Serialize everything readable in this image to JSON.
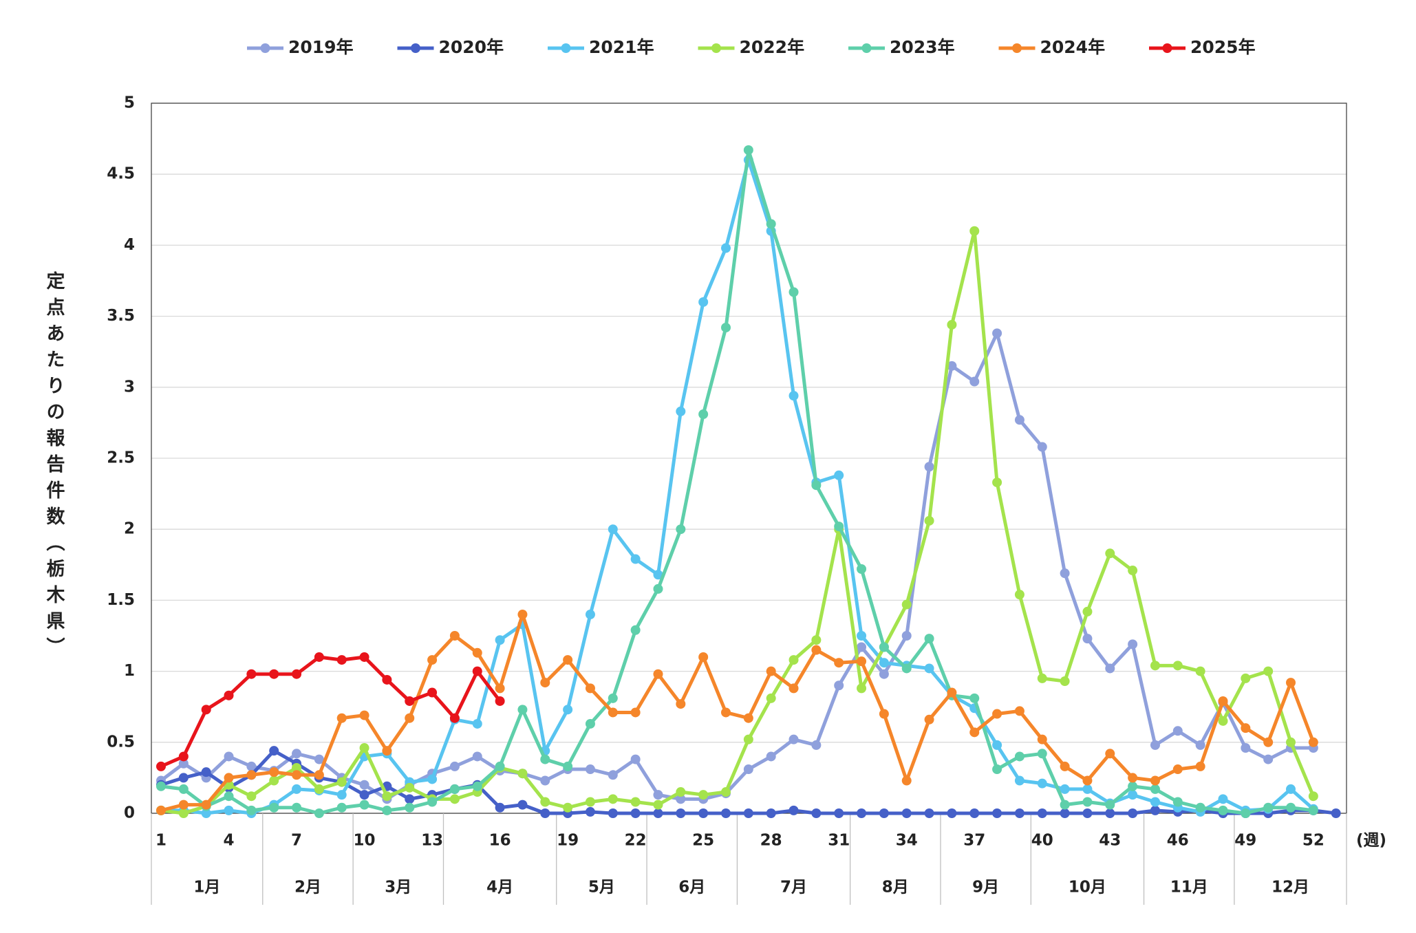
{
  "chart_data": {
    "type": "line",
    "y_label": "定点あたりの報告件数（栃木県）",
    "x_unit": "(週)",
    "categories": [
      "1",
      null,
      null,
      "4",
      null,
      null,
      "7",
      null,
      null,
      "10",
      null,
      null,
      "13",
      null,
      null,
      "16",
      null,
      null,
      "19",
      null,
      null,
      "22",
      null,
      null,
      "25",
      null,
      null,
      "28",
      null,
      null,
      "31",
      null,
      null,
      "34",
      null,
      null,
      "37",
      null,
      null,
      "40",
      null,
      null,
      "43",
      null,
      null,
      "46",
      null,
      null,
      "49",
      null,
      null,
      "52",
      null
    ],
    "month_groups": [
      {
        "label": "1月",
        "weeks": 5
      },
      {
        "label": "2月",
        "weeks": 4
      },
      {
        "label": "3月",
        "weeks": 4
      },
      {
        "label": "4月",
        "weeks": 5
      },
      {
        "label": "5月",
        "weeks": 4
      },
      {
        "label": "6月",
        "weeks": 4
      },
      {
        "label": "7月",
        "weeks": 5
      },
      {
        "label": "8月",
        "weeks": 4
      },
      {
        "label": "9月",
        "weeks": 4
      },
      {
        "label": "10月",
        "weeks": 5
      },
      {
        "label": "11月",
        "weeks": 4
      },
      {
        "label": "12月",
        "weeks": 5
      }
    ],
    "ylim": [
      0,
      5
    ],
    "yticks": [
      0,
      0.5,
      1,
      1.5,
      2,
      2.5,
      3,
      3.5,
      4,
      4.5,
      5
    ],
    "grid": true,
    "legend": "top",
    "series": [
      {
        "name": "2019年",
        "color": "#8fa0dc",
        "values": [
          0.23,
          0.35,
          0.25,
          0.4,
          0.33,
          0.3,
          0.42,
          0.38,
          0.25,
          0.2,
          0.1,
          0.2,
          0.28,
          0.33,
          0.4,
          0.3,
          0.28,
          0.23,
          0.31,
          0.31,
          0.27,
          0.38,
          0.13,
          0.1,
          0.1,
          0.14,
          0.31,
          0.4,
          0.52,
          0.48,
          0.9,
          1.17,
          0.98,
          1.25,
          2.44,
          3.15,
          3.04,
          3.38,
          2.77,
          2.58,
          1.69,
          1.23,
          1.02,
          1.19,
          0.48,
          0.58,
          0.48,
          0.78,
          0.46,
          0.38,
          0.46,
          0.46,
          null
        ]
      },
      {
        "name": "2020年",
        "color": "#4560c8",
        "values": [
          0.2,
          0.25,
          0.29,
          0.18,
          0.27,
          0.44,
          0.35,
          0.25,
          0.22,
          0.13,
          0.19,
          0.1,
          0.13,
          0.17,
          0.2,
          0.04,
          0.06,
          0,
          0,
          0.01,
          0,
          0,
          0,
          0,
          0,
          0,
          0,
          0,
          0.02,
          0,
          0,
          0,
          0,
          0,
          0,
          0,
          0,
          0,
          0,
          0,
          0,
          0,
          0,
          0,
          0.02,
          0.01,
          0.02,
          0,
          0,
          0,
          0.02,
          0.02,
          0
        ]
      },
      {
        "name": "2021年",
        "color": "#58c4f0",
        "values": [
          0.02,
          0.02,
          0,
          0.02,
          0,
          0.06,
          0.17,
          0.16,
          0.13,
          0.4,
          0.42,
          0.22,
          0.24,
          0.66,
          0.63,
          1.22,
          1.33,
          0.44,
          0.73,
          1.4,
          2.0,
          1.79,
          1.68,
          2.83,
          3.6,
          3.98,
          4.6,
          4.1,
          2.94,
          2.33,
          2.38,
          1.25,
          1.06,
          1.04,
          1.02,
          0.83,
          0.74,
          0.48,
          0.23,
          0.21,
          0.17,
          0.17,
          0.07,
          0.13,
          0.08,
          0.04,
          0.01,
          0.1,
          0.02,
          0.03,
          0.17,
          0.03,
          null
        ]
      },
      {
        "name": "2022年",
        "color": "#a4e34c",
        "values": [
          0.02,
          0,
          0.05,
          0.2,
          0.12,
          0.23,
          0.32,
          0.17,
          0.22,
          0.46,
          0.12,
          0.18,
          0.1,
          0.1,
          0.15,
          0.32,
          0.28,
          0.08,
          0.04,
          0.08,
          0.1,
          0.08,
          0.06,
          0.15,
          0.13,
          0.15,
          0.52,
          0.81,
          1.08,
          1.22,
          2.0,
          0.88,
          1.17,
          1.47,
          2.06,
          3.44,
          4.1,
          2.33,
          1.54,
          0.95,
          0.93,
          1.42,
          1.83,
          1.71,
          1.04,
          1.04,
          1.0,
          0.65,
          0.95,
          1.0,
          0.5,
          0.12,
          null
        ]
      },
      {
        "name": "2023年",
        "color": "#5ecfaa",
        "values": [
          0.19,
          0.17,
          0.05,
          0.12,
          0.02,
          0.04,
          0.04,
          0,
          0.04,
          0.06,
          0.02,
          0.04,
          0.08,
          0.17,
          0.19,
          0.33,
          0.73,
          0.38,
          0.33,
          0.63,
          0.81,
          1.29,
          1.58,
          2.0,
          2.81,
          3.42,
          4.67,
          4.15,
          3.67,
          2.31,
          2.02,
          1.72,
          1.17,
          1.02,
          1.23,
          0.83,
          0.81,
          0.31,
          0.4,
          0.42,
          0.06,
          0.08,
          0.06,
          0.19,
          0.17,
          0.08,
          0.04,
          0.02,
          0,
          0.04,
          0.04,
          0.02,
          null
        ]
      },
      {
        "name": "2024年",
        "color": "#f5862a",
        "values": [
          0.02,
          0.06,
          0.06,
          0.25,
          0.27,
          0.29,
          0.27,
          0.27,
          0.67,
          0.69,
          0.44,
          0.67,
          1.08,
          1.25,
          1.13,
          0.88,
          1.4,
          0.92,
          1.08,
          0.88,
          0.71,
          0.71,
          0.98,
          0.77,
          1.1,
          0.71,
          0.67,
          1.0,
          0.88,
          1.15,
          1.06,
          1.07,
          0.7,
          0.23,
          0.66,
          0.85,
          0.57,
          0.7,
          0.72,
          0.52,
          0.33,
          0.23,
          0.42,
          0.25,
          0.23,
          0.31,
          0.33,
          0.79,
          0.6,
          0.5,
          0.92,
          0.5,
          null
        ]
      },
      {
        "name": "2025年",
        "color": "#e8141b",
        "values": [
          0.33,
          0.4,
          0.73,
          0.83,
          0.98,
          0.98,
          0.98,
          1.1,
          1.08,
          1.1,
          0.94,
          0.79,
          0.85,
          0.67,
          1.0,
          0.79,
          null,
          null,
          null,
          null,
          null,
          null,
          null,
          null,
          null,
          null,
          null,
          null,
          null,
          null,
          null,
          null,
          null,
          null,
          null,
          null,
          null,
          null,
          null,
          null,
          null,
          null,
          null,
          null,
          null,
          null,
          null,
          null,
          null,
          null,
          null,
          null,
          null
        ]
      }
    ]
  }
}
